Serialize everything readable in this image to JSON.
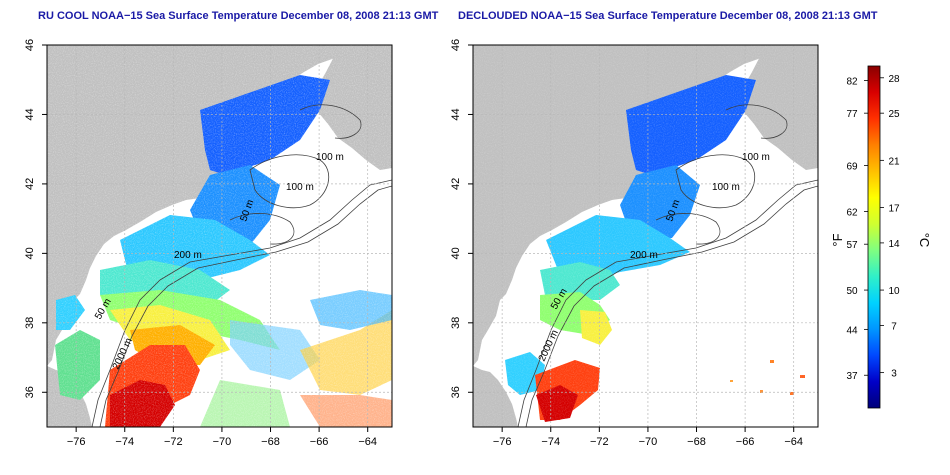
{
  "panels": [
    {
      "title": "RU COOL NOAA−15 Sea Surface Temperature December 08, 2008 21:13 GMT",
      "contour_labels": [
        "100 m",
        "100 m",
        "50 m",
        "200 m",
        "50 m",
        "2000 m"
      ]
    },
    {
      "title": "DECLOUDED NOAA−15 Sea Surface Temperature December 08, 2008 21:13 GMT",
      "contour_labels": [
        "100 m",
        "100 m",
        "50 m",
        "200 m",
        "50 m",
        "2000 m"
      ]
    }
  ],
  "axes": {
    "x_ticks": [
      "−76",
      "−74",
      "−72",
      "−70",
      "−68",
      "−66",
      "−64"
    ],
    "x_tick_values": [
      -76,
      -74,
      -72,
      -70,
      -68,
      -66,
      -64
    ],
    "y_ticks": [
      "46",
      "44",
      "42",
      "40",
      "38",
      "36"
    ],
    "y_tick_values": [
      46,
      44,
      42,
      40,
      38,
      36
    ],
    "lon_range": [
      -77.2,
      -63
    ],
    "lat_range": [
      35,
      46
    ]
  },
  "colorbar": {
    "unit_left": "°F",
    "unit_right": "°C",
    "f_ticks": [
      "82",
      "77",
      "69",
      "62",
      "57",
      "50",
      "44",
      "37"
    ],
    "f_values": [
      82,
      77,
      69,
      62,
      57,
      50,
      44,
      37
    ],
    "c_ticks": [
      "28",
      "25",
      "21",
      "17",
      "14",
      "10",
      "7",
      "3"
    ],
    "c_values": [
      28,
      25,
      21,
      17,
      14,
      10,
      7,
      3
    ],
    "c_range": [
      0,
      29
    ],
    "colors": [
      "#00007a",
      "#0000c8",
      "#0048ff",
      "#0096ff",
      "#00d2ff",
      "#30f0c8",
      "#80ff80",
      "#d0ff30",
      "#ffff00",
      "#ffc000",
      "#ff8000",
      "#ff3000",
      "#d80000",
      "#8a0000"
    ]
  },
  "colors": {
    "land": "#c0c0c0",
    "grid": "#b8b8b8",
    "contour": "#404040",
    "title": "#1a1aa6"
  }
}
